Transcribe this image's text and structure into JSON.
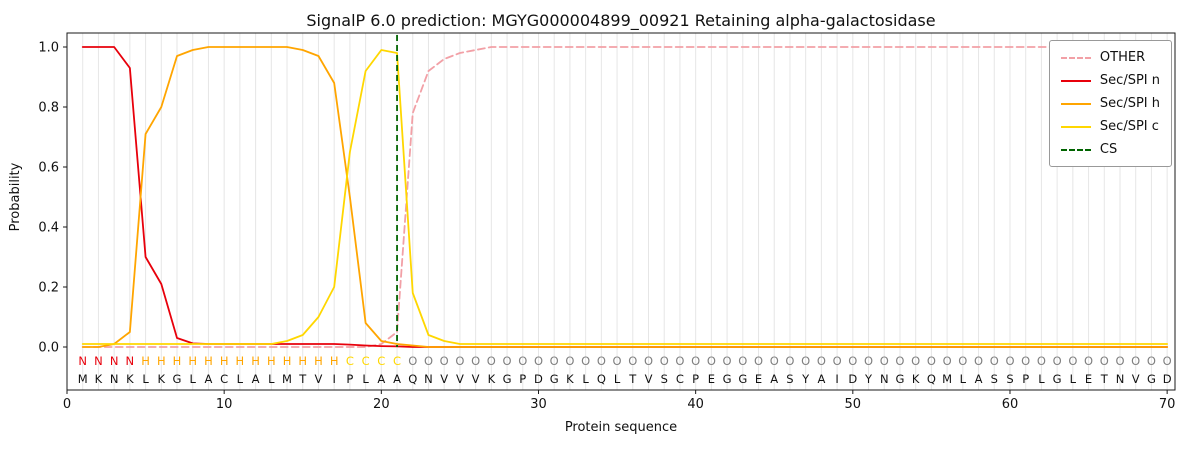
{
  "chart_data": {
    "type": "line",
    "title": "SignalP 6.0 prediction: MGYG000004899_00921 Retaining alpha-galactosidase",
    "xlabel": "Protein sequence",
    "ylabel": "Probability",
    "xlim": [
      0,
      70.5
    ],
    "ylim": [
      0,
      1.0
    ],
    "grid": "vertical-per-residue",
    "legend_position": "upper right",
    "xticks": [
      "0",
      "10",
      "20",
      "30",
      "40",
      "50",
      "60",
      "70"
    ],
    "yticks": [
      "0.0",
      "0.2",
      "0.4",
      "0.6",
      "0.8",
      "1.0"
    ],
    "x": [
      1,
      2,
      3,
      4,
      5,
      6,
      7,
      8,
      9,
      10,
      11,
      12,
      13,
      14,
      15,
      16,
      17,
      18,
      19,
      20,
      21,
      22,
      23,
      24,
      25,
      26,
      27,
      28,
      29,
      30,
      31,
      32,
      33,
      34,
      35,
      36,
      37,
      38,
      39,
      40,
      41,
      42,
      43,
      44,
      45,
      46,
      47,
      48,
      49,
      50,
      51,
      52,
      53,
      54,
      55,
      56,
      57,
      58,
      59,
      60,
      61,
      62,
      63,
      64,
      65,
      66,
      67,
      68,
      69,
      70
    ],
    "series": [
      {
        "name": "OTHER",
        "color": "#f2a0a6",
        "dash": "7 4",
        "values": [
          0,
          0,
          0,
          0,
          0,
          0,
          0,
          0,
          0,
          0,
          0,
          0,
          0,
          0,
          0,
          0,
          0,
          0,
          0,
          0.01,
          0.05,
          0.78,
          0.92,
          0.96,
          0.98,
          0.99,
          1,
          1,
          1,
          1,
          1,
          1,
          1,
          1,
          1,
          1,
          1,
          1,
          1,
          1,
          1,
          1,
          1,
          1,
          1,
          1,
          1,
          1,
          1,
          1,
          1,
          1,
          1,
          1,
          1,
          1,
          1,
          1,
          1,
          1,
          1,
          1,
          1,
          1,
          1,
          1,
          1,
          1,
          1,
          1
        ]
      },
      {
        "name": "Sec/SPI n",
        "color": "#e8000b",
        "dash": null,
        "values": [
          1,
          1,
          1,
          0.93,
          0.3,
          0.21,
          0.03,
          0.012,
          0.01,
          0.01,
          0.01,
          0.01,
          0.01,
          0.01,
          0.01,
          0.01,
          0.01,
          0.008,
          0.005,
          0.003,
          0.002,
          0,
          0,
          0,
          0,
          0,
          0,
          0,
          0,
          0,
          0,
          0,
          0,
          0,
          0,
          0,
          0,
          0,
          0,
          0,
          0,
          0,
          0,
          0,
          0,
          0,
          0,
          0,
          0,
          0,
          0,
          0,
          0,
          0,
          0,
          0,
          0,
          0,
          0,
          0,
          0,
          0,
          0,
          0,
          0,
          0,
          0,
          0,
          0,
          0
        ]
      },
      {
        "name": "Sec/SPI h",
        "color": "#ffa500",
        "dash": null,
        "values": [
          0,
          0,
          0.01,
          0.05,
          0.71,
          0.8,
          0.97,
          0.99,
          1,
          1,
          1,
          1,
          1,
          1,
          0.99,
          0.97,
          0.88,
          0.5,
          0.08,
          0.02,
          0.01,
          0.005,
          0,
          0,
          0,
          0,
          0,
          0,
          0,
          0,
          0,
          0,
          0,
          0,
          0,
          0,
          0,
          0,
          0,
          0,
          0,
          0,
          0,
          0,
          0,
          0,
          0,
          0,
          0,
          0,
          0,
          0,
          0,
          0,
          0,
          0,
          0,
          0,
          0,
          0,
          0,
          0,
          0,
          0,
          0,
          0,
          0,
          0,
          0,
          0
        ]
      },
      {
        "name": "Sec/SPI c",
        "color": "#ffd700",
        "dash": null,
        "values": [
          0.01,
          0.01,
          0.01,
          0.01,
          0.01,
          0.01,
          0.01,
          0.01,
          0.01,
          0.01,
          0.01,
          0.01,
          0.01,
          0.02,
          0.04,
          0.1,
          0.2,
          0.65,
          0.92,
          0.99,
          0.98,
          0.18,
          0.04,
          0.02,
          0.01,
          0.01,
          0.01,
          0.01,
          0.01,
          0.01,
          0.01,
          0.01,
          0.01,
          0.01,
          0.01,
          0.01,
          0.01,
          0.01,
          0.01,
          0.01,
          0.01,
          0.01,
          0.01,
          0.01,
          0.01,
          0.01,
          0.01,
          0.01,
          0.01,
          0.01,
          0.01,
          0.01,
          0.01,
          0.01,
          0.01,
          0.01,
          0.01,
          0.01,
          0.01,
          0.01,
          0.01,
          0.01,
          0.01,
          0.01,
          0.01,
          0.01,
          0.01,
          0.01,
          0.01,
          0.01
        ]
      }
    ],
    "cs_position": 21,
    "cs_color": "#006400",
    "sequence": "MKNKLKGLACLALMTVIPLAAQNVVVKGPDGKLQLTVSCPEGGEASYAIDYNGKQMLASSPLGLETNVGD",
    "region_labels": "NNNNHHHHHHHHHHHHHCCCCOOOOOOOOOOOOOOOOOOOOOOOOOOOOOOOOOOOOOOOOOOOOOOOOO",
    "region_colors": {
      "N": "#e8000b",
      "H": "#ffa500",
      "C": "#ffd700",
      "O": "#7f7f7f"
    },
    "legend": [
      {
        "label": "OTHER",
        "color": "#f2a0a6",
        "dashed": true
      },
      {
        "label": "Sec/SPI n",
        "color": "#e8000b",
        "dashed": false
      },
      {
        "label": "Sec/SPI h",
        "color": "#ffa500",
        "dashed": false
      },
      {
        "label": "Sec/SPI c",
        "color": "#ffd700",
        "dashed": false
      },
      {
        "label": "CS",
        "color": "#006400",
        "dashed": true
      }
    ],
    "style": {
      "grid_color": "#e6e6e6",
      "axis_color": "#1a1a1a",
      "text_color": "#111111"
    }
  }
}
